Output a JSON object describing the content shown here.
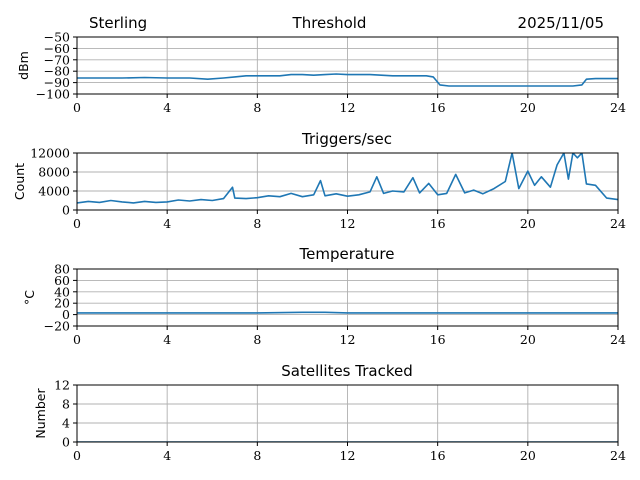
{
  "header": {
    "station": "Sterling",
    "date": "2025/11/05"
  },
  "colors": {
    "line": "#1f77b4",
    "grid": "#b0b0b0",
    "axis": "#000000"
  },
  "chart_data": [
    {
      "type": "line",
      "title": "Threshold",
      "ylabel": "dBm",
      "xlabel": "",
      "xlim": [
        0,
        24
      ],
      "ylim": [
        -100,
        -50
      ],
      "xticks": [
        0,
        4,
        8,
        12,
        16,
        20,
        24
      ],
      "xtick_labels": [
        "0",
        "4",
        "8",
        "12",
        "16",
        "20",
        "24"
      ],
      "yticks": [
        -100,
        -90,
        -80,
        -70,
        -60,
        -50
      ],
      "ytick_labels": [
        "−100",
        "−90",
        "−80",
        "−70",
        "−60",
        "−50"
      ],
      "grid": true,
      "series": [
        {
          "name": "Threshold",
          "x": [
            0,
            1,
            2,
            3,
            4,
            5,
            5.8,
            6.5,
            7,
            7.5,
            8,
            8.5,
            9,
            9.5,
            10,
            10.5,
            11,
            11.5,
            12,
            12.5,
            13,
            13.5,
            14,
            14.5,
            15,
            15.5,
            15.8,
            16.1,
            16.5,
            17,
            18,
            19,
            20,
            21,
            22,
            22.4,
            22.6,
            23,
            24
          ],
          "values": [
            -86,
            -86,
            -86,
            -85.5,
            -86,
            -86,
            -87,
            -86,
            -85,
            -84,
            -84,
            -84,
            -84,
            -83,
            -83,
            -83.5,
            -83,
            -82.5,
            -83,
            -83,
            -83,
            -83.5,
            -84,
            -84,
            -84,
            -84,
            -85,
            -92,
            -93,
            -93,
            -93,
            -93,
            -93,
            -93,
            -93,
            -92,
            -87,
            -86.5,
            -86.5
          ]
        }
      ]
    },
    {
      "type": "line",
      "title": "Triggers/sec",
      "ylabel": "Count",
      "xlabel": "",
      "xlim": [
        0,
        24
      ],
      "ylim": [
        0,
        12000
      ],
      "xticks": [
        0,
        4,
        8,
        12,
        16,
        20,
        24
      ],
      "xtick_labels": [
        "0",
        "4",
        "8",
        "12",
        "16",
        "20",
        "24"
      ],
      "yticks": [
        0,
        4000,
        8000,
        12000
      ],
      "ytick_labels": [
        "0",
        "4000",
        "8000",
        "12000"
      ],
      "grid": true,
      "series": [
        {
          "name": "Triggers/sec",
          "x": [
            0,
            0.5,
            1,
            1.5,
            2,
            2.5,
            3,
            3.5,
            4,
            4.5,
            5,
            5.5,
            6,
            6.5,
            6.9,
            7,
            7.5,
            8,
            8.5,
            9,
            9.5,
            10,
            10.5,
            10.8,
            11,
            11.5,
            12,
            12.5,
            13,
            13.3,
            13.6,
            14,
            14.5,
            14.9,
            15.2,
            15.6,
            16,
            16.4,
            16.8,
            17.2,
            17.6,
            18,
            18.5,
            19,
            19.3,
            19.6,
            20,
            20.3,
            20.6,
            21,
            21.3,
            21.6,
            21.8,
            22,
            22.2,
            22.4,
            22.6,
            23,
            23.5,
            24
          ],
          "values": [
            1500,
            1800,
            1600,
            2000,
            1700,
            1500,
            1800,
            1600,
            1700,
            2100,
            1900,
            2200,
            2000,
            2400,
            4800,
            2500,
            2400,
            2600,
            3000,
            2800,
            3500,
            2800,
            3200,
            6200,
            3000,
            3400,
            2900,
            3200,
            3800,
            7000,
            3500,
            4000,
            3800,
            6800,
            3600,
            5600,
            3200,
            3500,
            7500,
            3600,
            4200,
            3400,
            4500,
            6000,
            12000,
            4500,
            8200,
            5200,
            7000,
            4800,
            9500,
            12000,
            6500,
            12000,
            11000,
            12000,
            5500,
            5200,
            2500,
            2200
          ]
        }
      ]
    },
    {
      "type": "line",
      "title": "Temperature",
      "ylabel": "°C",
      "xlabel": "",
      "xlim": [
        0,
        24
      ],
      "ylim": [
        -20,
        80
      ],
      "xticks": [
        0,
        4,
        8,
        12,
        16,
        20,
        24
      ],
      "xtick_labels": [
        "0",
        "4",
        "8",
        "12",
        "16",
        "20",
        "24"
      ],
      "yticks": [
        -20,
        0,
        20,
        40,
        60,
        80
      ],
      "ytick_labels": [
        "−20",
        "0",
        "20",
        "40",
        "60",
        "80"
      ],
      "grid": true,
      "series": [
        {
          "name": "Temperature",
          "x": [
            0,
            4,
            8,
            10,
            11,
            12,
            16,
            20,
            24
          ],
          "values": [
            3,
            3,
            3,
            4,
            4,
            3,
            3,
            3,
            3
          ]
        }
      ]
    },
    {
      "type": "line",
      "title": "Satellites Tracked",
      "ylabel": "Number",
      "xlabel": "",
      "xlim": [
        0,
        24
      ],
      "ylim": [
        0,
        12
      ],
      "xticks": [
        0,
        4,
        8,
        12,
        16,
        20,
        24
      ],
      "xtick_labels": [
        "0",
        "4",
        "8",
        "12",
        "16",
        "20",
        "24"
      ],
      "yticks": [
        0,
        4,
        8,
        12
      ],
      "ytick_labels": [
        "0",
        "4",
        "8",
        "12"
      ],
      "grid": true,
      "series": [
        {
          "name": "Satellites Tracked",
          "x": [
            0,
            24
          ],
          "values": [
            0,
            0
          ]
        }
      ]
    }
  ]
}
